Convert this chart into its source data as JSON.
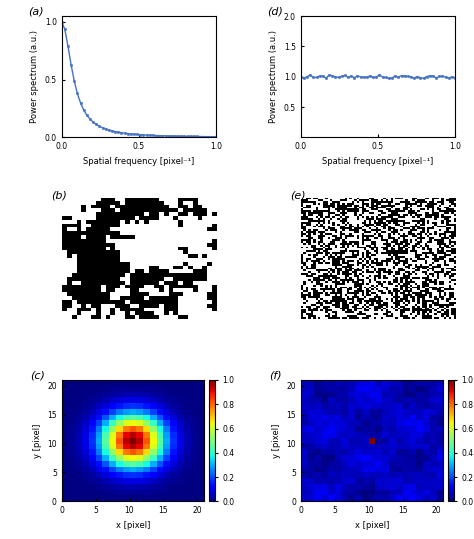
{
  "title_a": "(a)",
  "title_b": "(b)",
  "title_c": "(c)",
  "title_d": "(d)",
  "title_e": "(e)",
  "title_f": "(f)",
  "xlabel_freq": "Spatial frequency [pixel⁻¹]",
  "ylabel_power": "Power spectrum (a.u.)",
  "xlabel_pixel": "x [pixel]",
  "ylabel_pixel": "y [pixel]",
  "line_color": "#4472c4",
  "marker": "o",
  "markersize": 1.8,
  "linewidth": 1.0,
  "freq_xlim": [
    0,
    1
  ],
  "pink_ylim": [
    0,
    1.05
  ],
  "white_ylim": [
    0,
    2
  ],
  "white_yticks": [
    0.5,
    1.0,
    1.5,
    2.0
  ],
  "pink_yticks": [
    0,
    0.5,
    1.0
  ],
  "freq_xticks": [
    0,
    0.5,
    1
  ],
  "img_size": 21,
  "colormap": "jet",
  "background": "white",
  "pink_noise_size": 32,
  "white_noise_size": 64,
  "sigma_gauss": 3.2,
  "delta_bg_low": 0.03,
  "delta_bg_high": 0.08
}
